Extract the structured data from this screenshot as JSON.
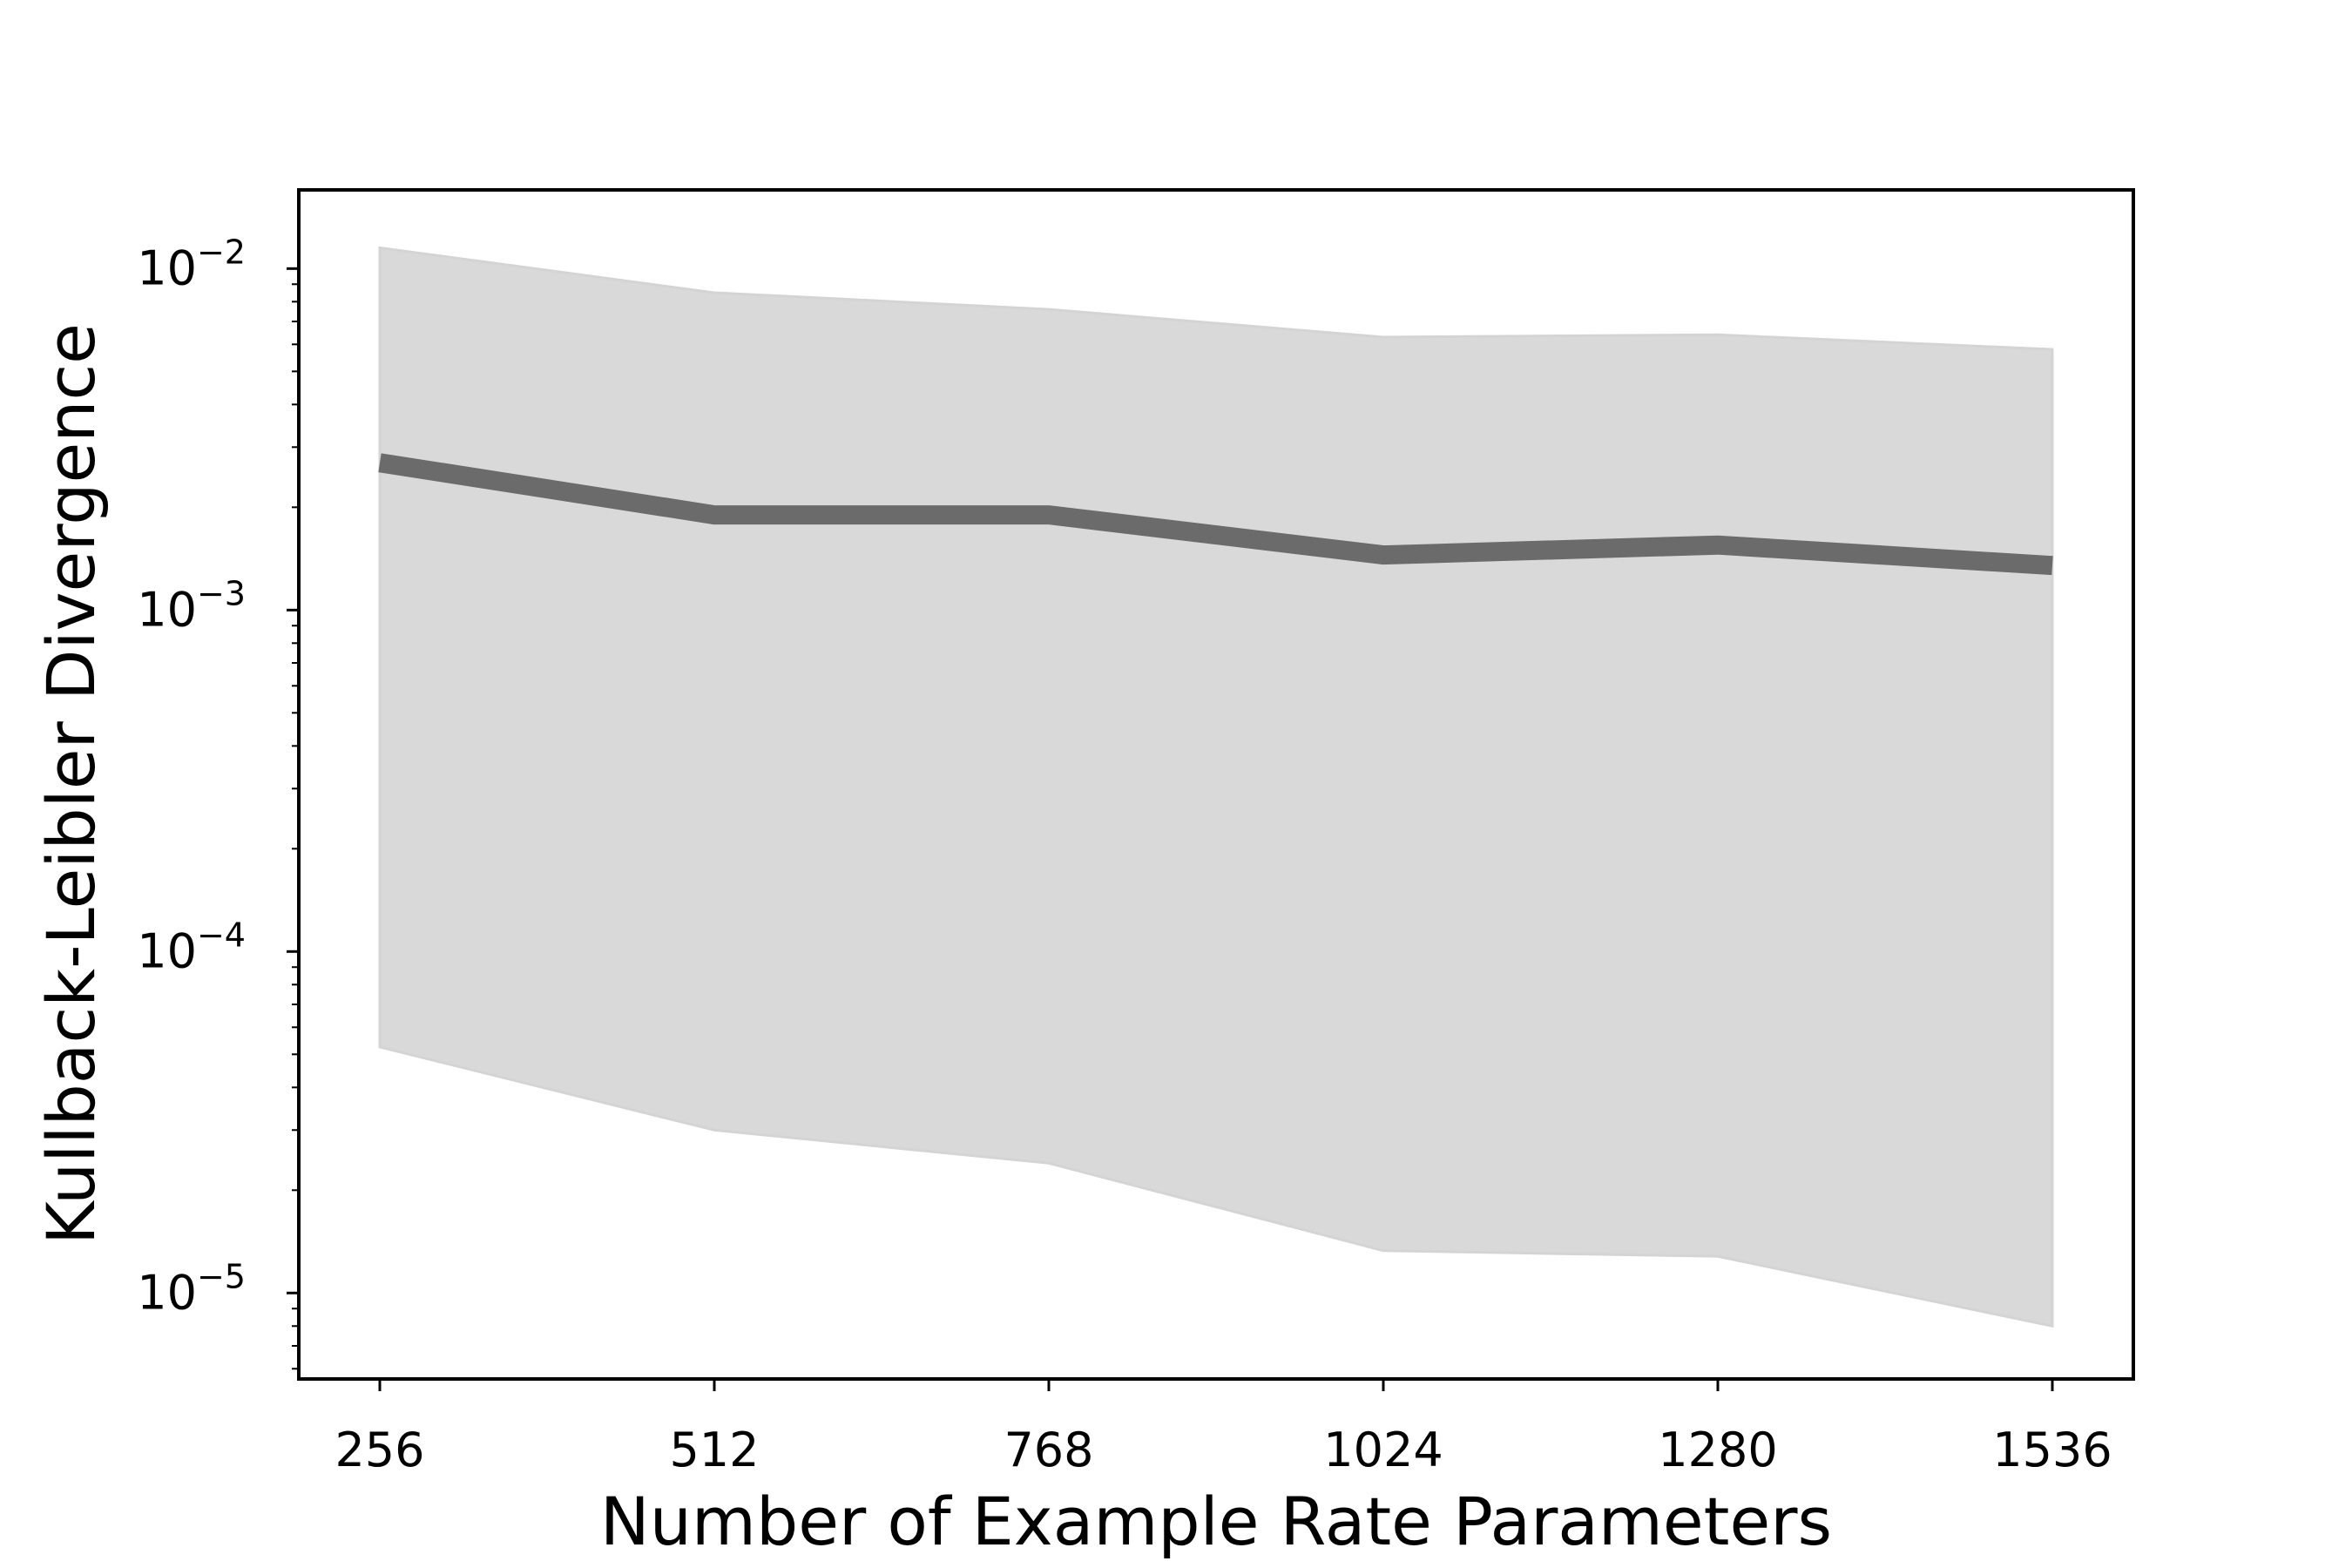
{
  "chart_data": {
    "type": "line",
    "title": "",
    "xlabel": "Number of Example Rate Parameters",
    "ylabel": "Kullback-Leibler Divergence",
    "x": [
      256,
      512,
      768,
      1024,
      1280,
      1536
    ],
    "x_tick_labels": [
      "256",
      "512",
      "768",
      "1024",
      "1280",
      "1536"
    ],
    "xlim": [
      194,
      1598
    ],
    "yscale": "log",
    "ylim": [
      5.6e-06,
      0.017
    ],
    "y_ticks": [
      {
        "value": 0.01,
        "base": "10",
        "exp": "−2"
      },
      {
        "value": 0.001,
        "base": "10",
        "exp": "−3"
      },
      {
        "value": 0.0001,
        "base": "10",
        "exp": "−4"
      },
      {
        "value": 1e-05,
        "base": "10",
        "exp": "−5"
      }
    ],
    "series": [
      {
        "values": [
          0.0027,
          0.0019,
          0.0019,
          0.00145,
          0.00155,
          0.00135
        ],
        "color": "#6b6b6b"
      }
    ],
    "band": {
      "upper": [
        0.0115,
        0.0085,
        0.0076,
        0.0063,
        0.0064,
        0.0058
      ],
      "lower": [
        5.25e-05,
        3e-05,
        2.4e-05,
        1.33e-05,
        1.28e-05,
        8e-06
      ],
      "color": "#d9d9d9"
    },
    "grid": false,
    "legend": "none"
  }
}
